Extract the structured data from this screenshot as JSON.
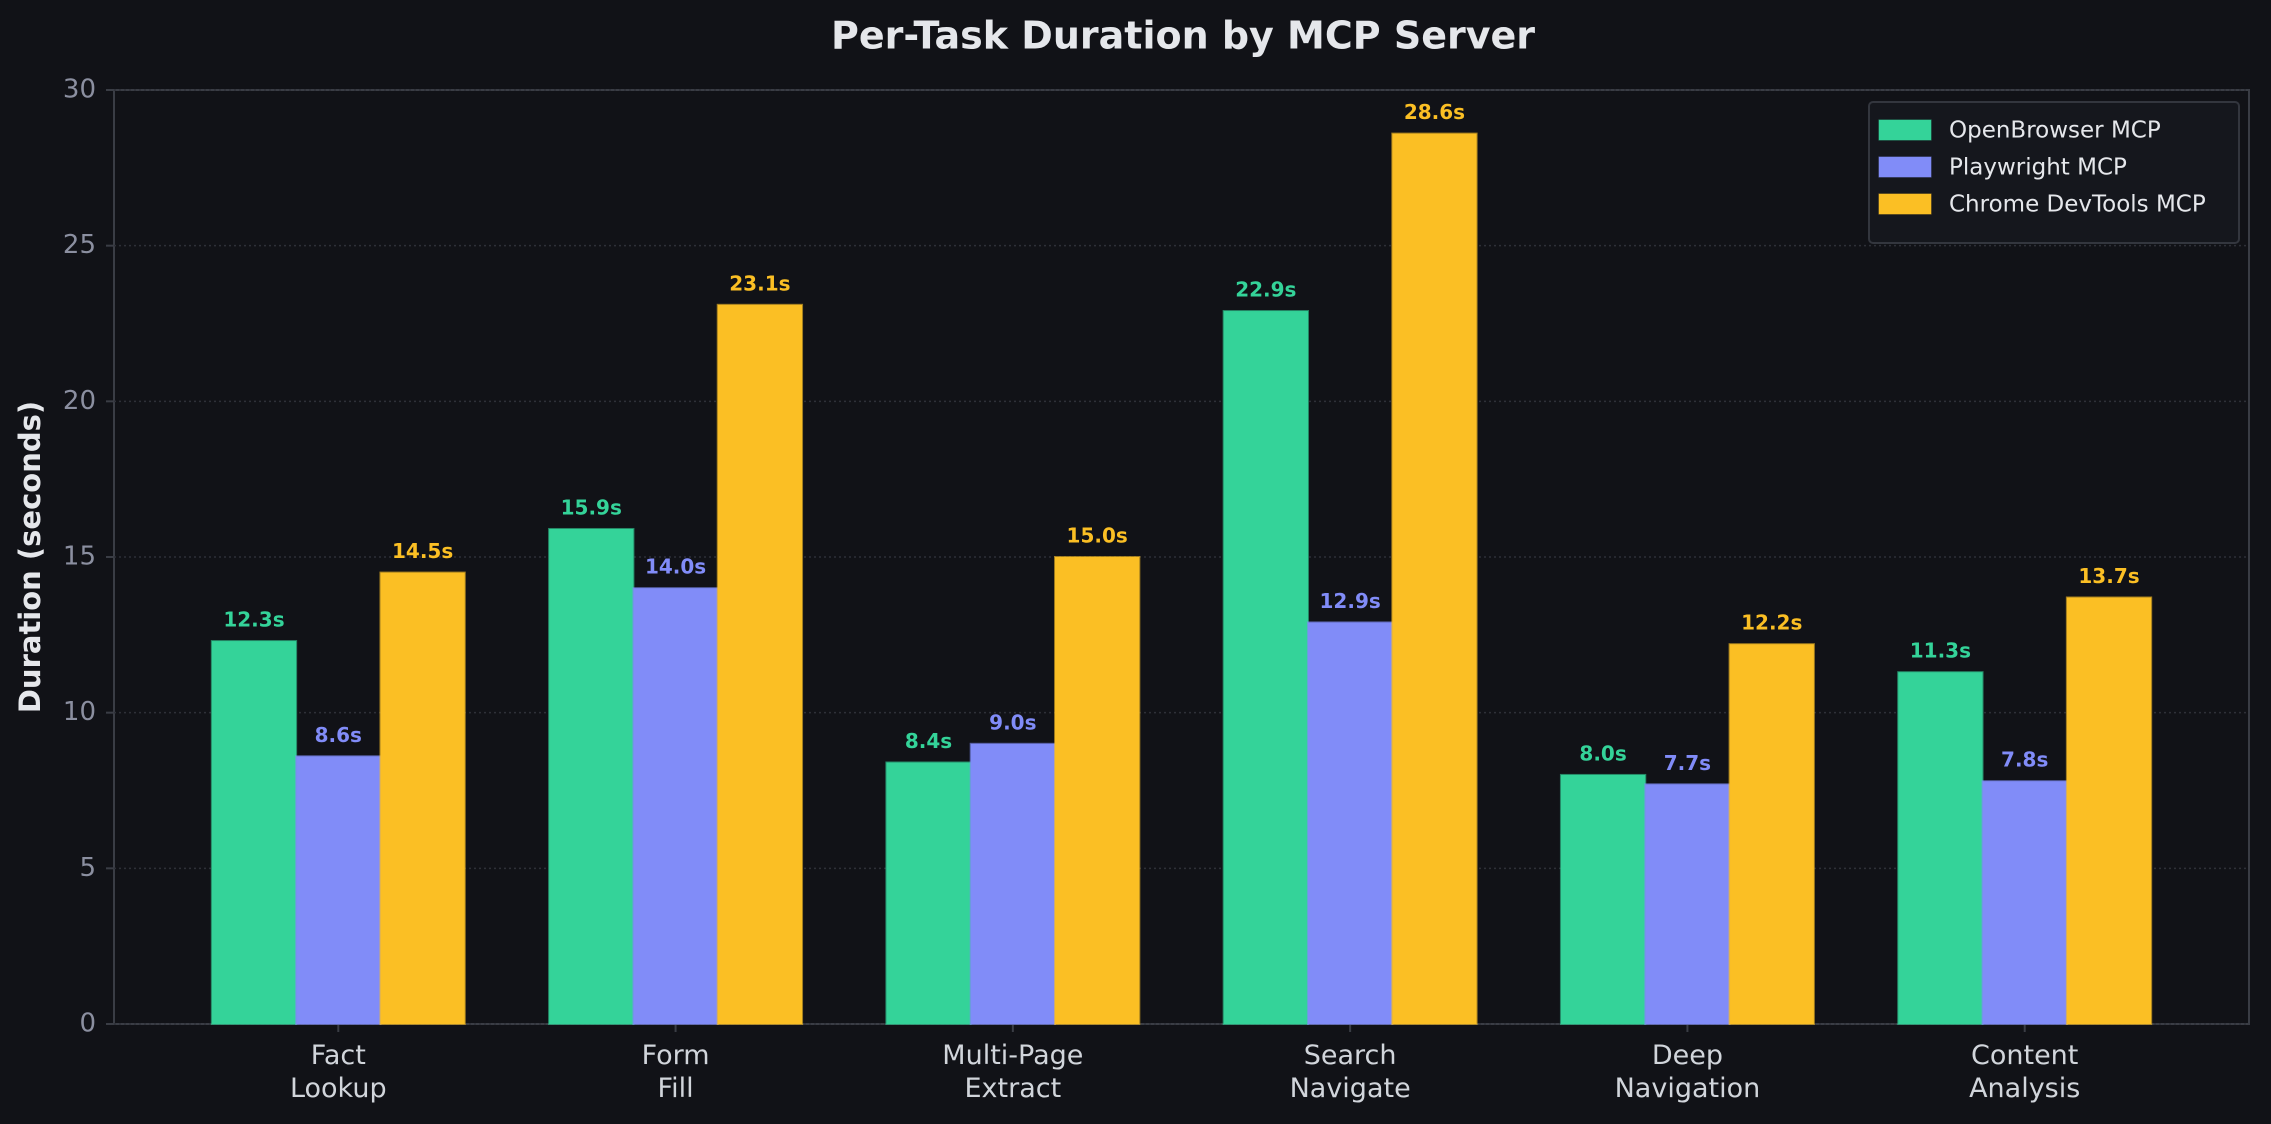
{
  "chart_data": {
    "type": "bar",
    "title": "Per-Task Duration by MCP Server",
    "y_label": "Duration (seconds)",
    "categories": [
      "Fact\nLookup",
      "Form\nFill",
      "Multi-Page\nExtract",
      "Search\nNavigate",
      "Deep\nNavigation",
      "Content\nAnalysis"
    ],
    "series": [
      {
        "name": "OpenBrowser MCP",
        "color": "#34d399",
        "values": [
          12.3,
          15.9,
          8.4,
          22.9,
          8.0,
          11.3
        ],
        "value_labels": [
          "12.3s",
          "15.9s",
          "8.4s",
          "22.9s",
          "8.0s",
          "11.3s"
        ]
      },
      {
        "name": "Playwright MCP",
        "color": "#818cf8",
        "values": [
          8.6,
          14.0,
          9.0,
          12.9,
          7.7,
          7.8
        ],
        "value_labels": [
          "8.6s",
          "14.0s",
          "9.0s",
          "12.9s",
          "7.7s",
          "7.8s"
        ]
      },
      {
        "name": "Chrome DevTools MCP",
        "color": "#fbbf24",
        "values": [
          14.5,
          23.1,
          15.0,
          28.6,
          12.2,
          13.7
        ],
        "value_labels": [
          "14.5s",
          "23.1s",
          "15.0s",
          "28.6s",
          "12.2s",
          "13.7s"
        ]
      }
    ],
    "ylim": [
      0,
      30
    ],
    "yticks": [
      0,
      5,
      10,
      15,
      20,
      25,
      30
    ],
    "grid": true,
    "legend": "upper-right"
  }
}
